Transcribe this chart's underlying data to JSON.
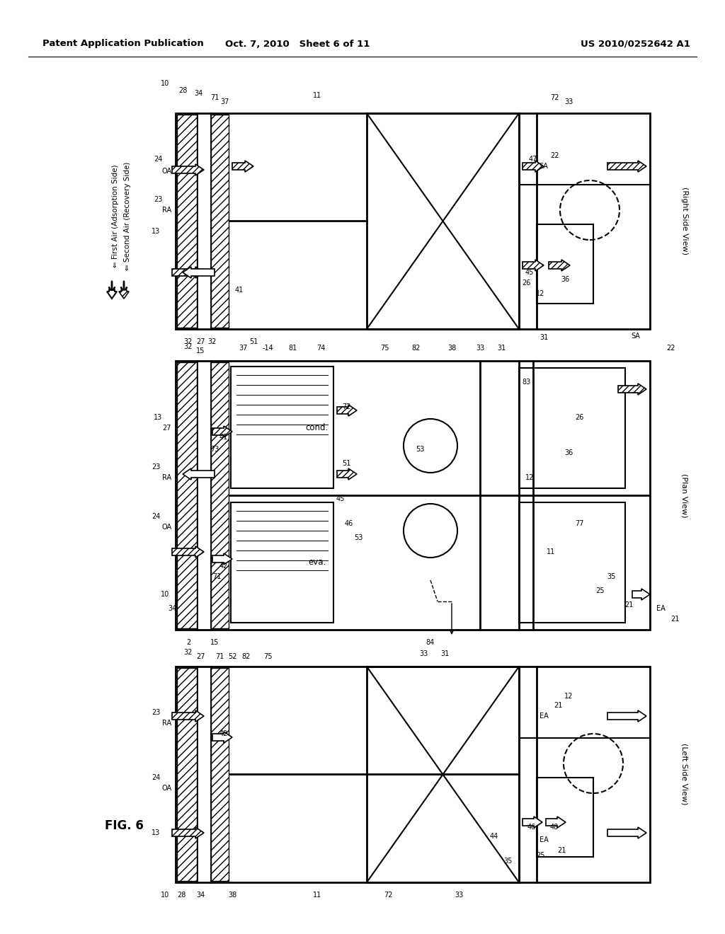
{
  "bg_color": "#ffffff",
  "header_left": "Patent Application Publication",
  "header_center": "Oct. 7, 2010   Sheet 6 of 11",
  "header_right": "US 2010/0252642 A1",
  "figure_label": "FIG. 6",
  "right_side_view_label": "(Right Side View)",
  "plan_view_label": "(Plan View)",
  "left_side_view_label": "(Left Side View)",
  "legend_first": "⇐ First Air (Adsorption Side)",
  "legend_second": "⇐ Second Air (Recovery Side)"
}
